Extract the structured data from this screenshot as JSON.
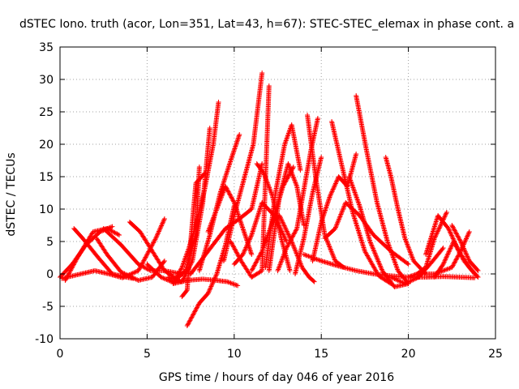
{
  "chart_data": {
    "type": "scatter",
    "title": "dSTEC Iono. truth (acor, Lon=351, Lat=43, h=67): STEC-STEC_elemax in phase cont. a",
    "xlabel": "GPS time / hours of day 046 of year 2016",
    "ylabel": "dSTEC  / TECUs",
    "xlim": [
      0,
      25
    ],
    "ylim": [
      -10,
      35
    ],
    "x_ticks": [
      "0",
      "5",
      "10",
      "15",
      "20",
      "25"
    ],
    "y_ticks": [
      "-10",
      "-5",
      "0",
      "5",
      "10",
      "15",
      "20",
      "25",
      "30",
      "35"
    ],
    "grid": true,
    "legend": "none",
    "marker": "+",
    "color": "#ff0000",
    "series": [
      {
        "x": [
          0.0,
          0.7,
          1.5,
          2.3,
          3.0
        ],
        "y": [
          -0.5,
          1.5,
          4.5,
          6.5,
          7.3
        ]
      },
      {
        "x": [
          0.8,
          1.3,
          2.2,
          3.0,
          3.8,
          4.2
        ],
        "y": [
          7.0,
          5.5,
          2.5,
          0.0,
          -0.5,
          -0.7
        ]
      },
      {
        "x": [
          0.1,
          1.2,
          2.0,
          2.8,
          3.6,
          4.5,
          5.5,
          6.0
        ],
        "y": [
          -0.7,
          0.0,
          0.5,
          0.0,
          -0.6,
          0.5,
          5.5,
          8.5
        ]
      },
      {
        "x": [
          0.3,
          1.0,
          1.9,
          2.7,
          3.4
        ],
        "y": [
          -1.0,
          2.5,
          6.5,
          7.0,
          6.0
        ]
      },
      {
        "x": [
          2.1,
          2.7,
          3.5,
          4.5,
          5.3,
          6.0
        ],
        "y": [
          5.5,
          3.0,
          0.3,
          -1.0,
          -0.5,
          2.0
        ]
      },
      {
        "x": [
          4.0,
          4.6,
          5.3,
          6.0,
          6.8
        ],
        "y": [
          8.0,
          6.5,
          3.5,
          0.5,
          -1.0
        ]
      },
      {
        "x": [
          2.5,
          3.5,
          4.5,
          5.2,
          6.0,
          7.0
        ],
        "y": [
          7.0,
          4.5,
          1.5,
          0.5,
          0.5,
          0.0
        ]
      },
      {
        "x": [
          5.0,
          5.8,
          6.5,
          7.2,
          7.8,
          8.0
        ],
        "y": [
          1.5,
          -0.5,
          -1.3,
          0.5,
          6.0,
          16.5
        ]
      },
      {
        "x": [
          6.2,
          7.0,
          7.6,
          8.2,
          8.6
        ],
        "y": [
          -0.5,
          -1.2,
          2.0,
          11.0,
          22.5
        ]
      },
      {
        "x": [
          6.5,
          7.0,
          7.4,
          7.8,
          8.3,
          8.8,
          9.1
        ],
        "y": [
          -1.5,
          1.0,
          4.0,
          7.5,
          13.0,
          20.0,
          26.5
        ]
      },
      {
        "x": [
          6.5,
          7.3,
          8.2,
          9.0,
          9.6,
          10.2
        ],
        "y": [
          -1.5,
          -1.0,
          -0.8,
          -1.0,
          -1.2,
          -1.8
        ]
      },
      {
        "x": [
          7.0,
          7.3,
          7.5,
          7.8,
          8.3
        ],
        "y": [
          -3.5,
          -2.5,
          5.0,
          14.0,
          15.5
        ]
      },
      {
        "x": [
          7.3,
          7.6,
          8.0,
          8.5,
          9.0,
          9.5,
          10.0
        ],
        "y": [
          -8.0,
          -6.5,
          -4.5,
          -3.0,
          0.0,
          4.5,
          10.5
        ]
      },
      {
        "x": [
          7.5,
          8.5,
          9.5,
          10.3,
          11.0,
          11.6
        ],
        "y": [
          0.0,
          3.5,
          7.0,
          8.5,
          10.0,
          17.0
        ]
      },
      {
        "x": [
          8.0,
          8.6,
          9.2,
          9.8,
          10.3
        ],
        "y": [
          0.5,
          6.0,
          12.5,
          17.5,
          21.5
        ]
      },
      {
        "x": [
          8.5,
          9.0,
          9.5,
          10.0,
          10.5,
          11.0
        ],
        "y": [
          6.5,
          10.0,
          13.5,
          11.0,
          7.0,
          3.0
        ]
      },
      {
        "x": [
          9.4,
          10.0,
          10.5,
          11.1,
          11.6
        ],
        "y": [
          2.0,
          9.0,
          14.0,
          20.0,
          31.0
        ]
      },
      {
        "x": [
          9.8,
          10.4,
          11.0,
          11.6,
          12.0
        ],
        "y": [
          5.0,
          2.0,
          -0.5,
          0.5,
          29.0
        ]
      },
      {
        "x": [
          10.0,
          10.5,
          11.0,
          11.6,
          12.3,
          13.0
        ],
        "y": [
          1.5,
          3.0,
          6.0,
          11.0,
          9.0,
          5.0
        ]
      },
      {
        "x": [
          11.0,
          11.6,
          12.2,
          12.8,
          13.4
        ],
        "y": [
          0.5,
          3.5,
          8.0,
          13.5,
          16.5
        ]
      },
      {
        "x": [
          11.3,
          11.7,
          12.2,
          12.7,
          13.2
        ],
        "y": [
          17.0,
          15.5,
          12.0,
          5.5,
          0.5
        ]
      },
      {
        "x": [
          11.8,
          12.4,
          12.9,
          13.3,
          13.8
        ],
        "y": [
          1.0,
          13.0,
          20.0,
          23.0,
          16.0
        ]
      },
      {
        "x": [
          12.0,
          12.6,
          13.1,
          13.6,
          14.0
        ],
        "y": [
          0.5,
          12.0,
          17.0,
          13.5,
          7.5
        ]
      },
      {
        "x": [
          12.5,
          13.0,
          13.6,
          14.0,
          14.4,
          14.8
        ],
        "y": [
          0.5,
          4.0,
          7.0,
          13.0,
          19.0,
          24.0
        ]
      },
      {
        "x": [
          12.6,
          13.3,
          13.9,
          14.3,
          14.6
        ],
        "y": [
          9.0,
          5.0,
          1.0,
          -0.5,
          -1.2
        ]
      },
      {
        "x": [
          13.5,
          14.0,
          14.5,
          15.0
        ],
        "y": [
          0.0,
          5.5,
          12.5,
          18.0
        ]
      },
      {
        "x": [
          14.2,
          14.7,
          15.2,
          15.8,
          16.3
        ],
        "y": [
          24.5,
          14.5,
          6.0,
          2.0,
          1.0
        ]
      },
      {
        "x": [
          14.5,
          15.0,
          15.5,
          16.0,
          16.5,
          17.0
        ],
        "y": [
          2.0,
          8.0,
          12.0,
          15.0,
          13.5,
          18.5
        ]
      },
      {
        "x": [
          15.2,
          15.8,
          16.4,
          17.2,
          18.0,
          19.0,
          20.0
        ],
        "y": [
          5.5,
          7.0,
          11.0,
          9.0,
          6.0,
          3.5,
          1.5
        ]
      },
      {
        "x": [
          15.6,
          16.2,
          16.8,
          17.5,
          18.3,
          19.0
        ],
        "y": [
          23.5,
          16.5,
          9.5,
          3.5,
          -0.3,
          -1.5
        ]
      },
      {
        "x": [
          14.0,
          15.0,
          16.0,
          17.0,
          18.0,
          19.0,
          20.0,
          21.0,
          22.0,
          23.0,
          23.8
        ],
        "y": [
          3.0,
          2.0,
          1.2,
          0.5,
          0.0,
          -0.3,
          -0.5,
          -0.5,
          -0.4,
          -0.5,
          -0.6
        ]
      },
      {
        "x": [
          17.0,
          17.6,
          18.2,
          18.8,
          19.4,
          20.0
        ],
        "y": [
          27.5,
          19.0,
          11.0,
          5.0,
          0.5,
          -1.5
        ]
      },
      {
        "x": [
          16.6,
          17.2,
          17.8,
          18.5,
          19.2,
          20.0
        ],
        "y": [
          15.0,
          10.5,
          5.0,
          0.5,
          -2.0,
          -1.5
        ]
      },
      {
        "x": [
          18.7,
          19.0,
          19.4,
          19.8,
          20.3,
          21.0
        ],
        "y": [
          18.0,
          15.0,
          10.0,
          5.5,
          2.0,
          0.0
        ]
      },
      {
        "x": [
          19.0,
          19.8,
          20.6,
          21.4,
          22.0
        ],
        "y": [
          -0.5,
          -1.5,
          -0.5,
          2.0,
          4.0
        ]
      },
      {
        "x": [
          20.0,
          20.5,
          21.0,
          21.5,
          22.2
        ],
        "y": [
          -0.5,
          0.0,
          1.0,
          5.5,
          9.5
        ]
      },
      {
        "x": [
          21.0,
          21.7,
          22.3,
          22.9,
          23.5,
          24.0
        ],
        "y": [
          3.0,
          9.0,
          7.0,
          3.5,
          1.0,
          -0.5
        ]
      },
      {
        "x": [
          21.5,
          22.0,
          22.6,
          23.2,
          23.8
        ],
        "y": [
          -0.5,
          1.5,
          5.0,
          2.0,
          0.0
        ]
      },
      {
        "x": [
          20.5,
          21.5,
          22.5,
          23.0,
          23.5
        ],
        "y": [
          0.0,
          0.0,
          1.0,
          3.5,
          6.5
        ]
      },
      {
        "x": [
          22.5,
          23.0,
          23.5,
          24.0
        ],
        "y": [
          7.5,
          5.0,
          2.0,
          0.5
        ]
      }
    ]
  }
}
